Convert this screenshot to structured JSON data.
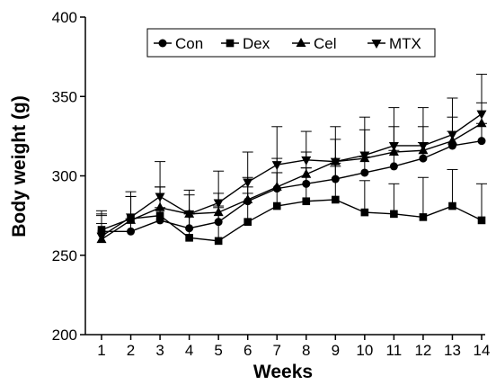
{
  "chart_data": {
    "type": "line",
    "title": "",
    "xlabel": "Weeks",
    "ylabel": "Body weight (g)",
    "x": [
      1,
      2,
      3,
      4,
      5,
      6,
      7,
      8,
      9,
      10,
      11,
      12,
      13,
      14
    ],
    "x_ticks": [
      "1",
      "2",
      "3",
      "4",
      "5",
      "6",
      "7",
      "8",
      "9",
      "10",
      "11",
      "12",
      "13",
      "14"
    ],
    "ylim": [
      200,
      400
    ],
    "y_ticks": [
      200,
      250,
      300,
      350,
      400
    ],
    "y_tick_labels": [
      "200",
      "250",
      "300",
      "350",
      "400"
    ],
    "grid": false,
    "legend_position": "top",
    "error_bars": "upper",
    "series": [
      {
        "name": "Con",
        "marker": "circle",
        "color": "#000000",
        "values": [
          265,
          265,
          272,
          267,
          271,
          284,
          292,
          295,
          298,
          302,
          306,
          311,
          319,
          322
        ],
        "errors": [
          10,
          8,
          8,
          9,
          9,
          9,
          10,
          10,
          10,
          10,
          10,
          10,
          9,
          11
        ]
      },
      {
        "name": "Dex",
        "marker": "square",
        "color": "#000000",
        "values": [
          266,
          273,
          275,
          261,
          259,
          271,
          281,
          284,
          285,
          277,
          276,
          274,
          281,
          272
        ],
        "errors": [
          12,
          17,
          18,
          16,
          22,
          18,
          21,
          21,
          21,
          20,
          19,
          25,
          23,
          23
        ]
      },
      {
        "name": "Cel",
        "marker": "triangle-up",
        "color": "#000000",
        "values": [
          260,
          272,
          280,
          276,
          277,
          285,
          293,
          301,
          309,
          311,
          315,
          316,
          322,
          333
        ],
        "errors": [
          10,
          15,
          13,
          12,
          12,
          14,
          18,
          14,
          14,
          18,
          16,
          15,
          15,
          13
        ]
      },
      {
        "name": "MTX",
        "marker": "triangle-down",
        "color": "#000000",
        "values": [
          262,
          274,
          287,
          276,
          283,
          296,
          307,
          310,
          309,
          313,
          319,
          319,
          326,
          339
        ],
        "errors": [
          14,
          13,
          22,
          15,
          20,
          19,
          24,
          18,
          22,
          24,
          24,
          24,
          23,
          25
        ]
      }
    ]
  }
}
